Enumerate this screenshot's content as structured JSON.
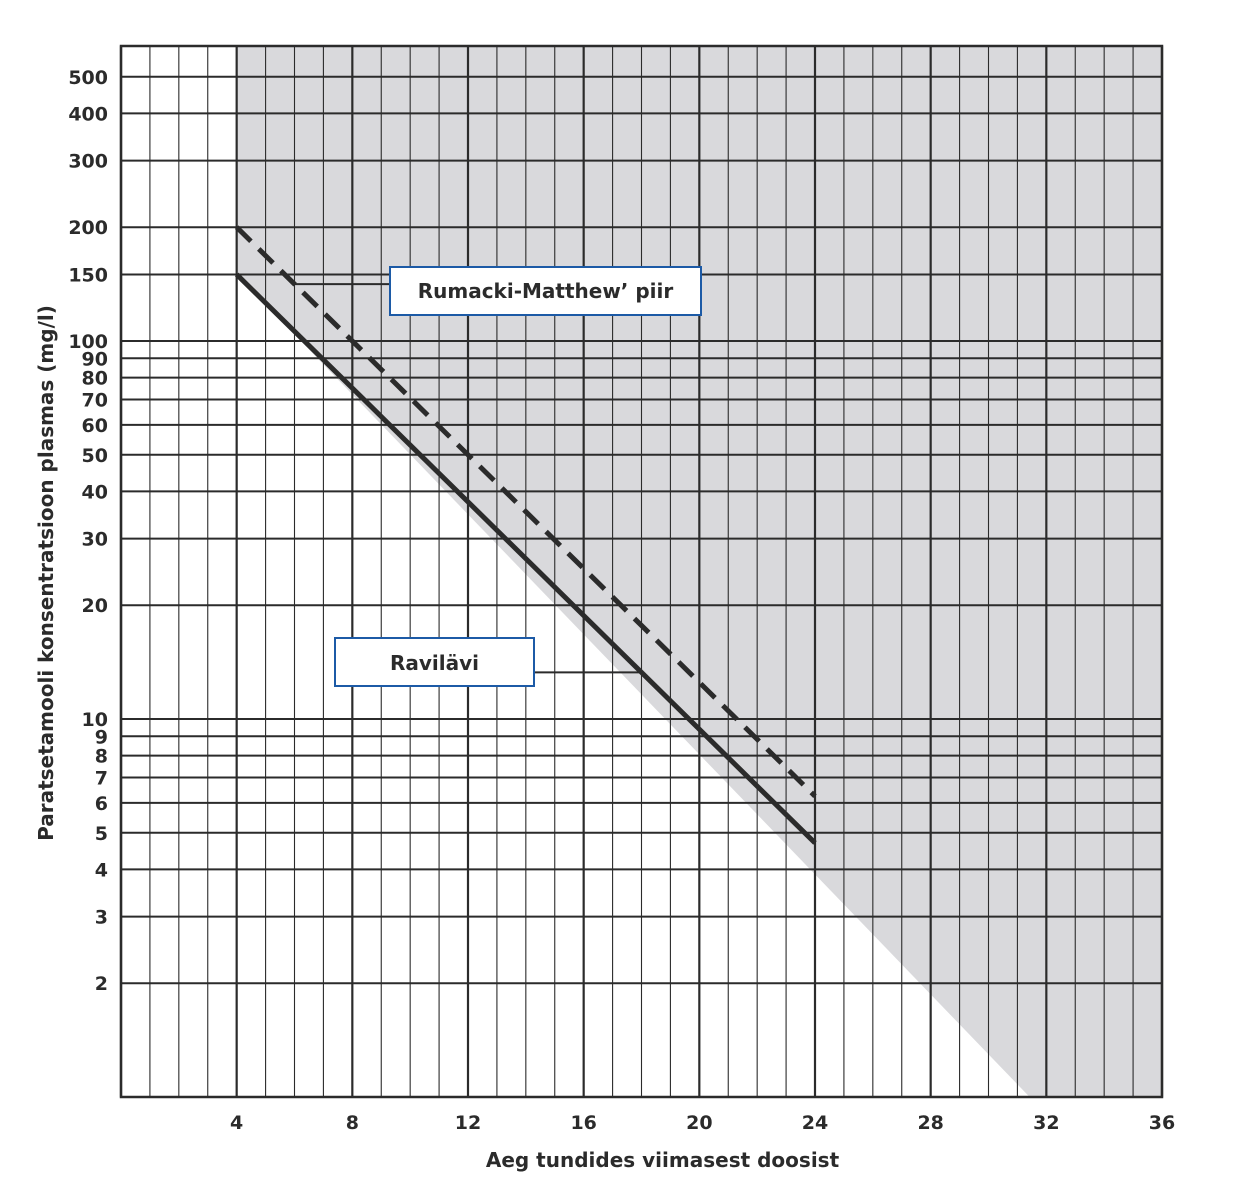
{
  "chart_data": {
    "type": "line",
    "title": "",
    "xlabel": "Aeg tundides viimasest doosist",
    "ylabel": "Paratsetamooli konsentratsioon plasmas (mg/l)",
    "y_scale": "log",
    "xlim": [
      0,
      36
    ],
    "ylim": [
      1.3,
      600
    ],
    "x_ticks": [
      "4",
      "8",
      "12",
      "16",
      "20",
      "24",
      "28",
      "32",
      "36"
    ],
    "y_ticks": [
      "500",
      "400",
      "300",
      "200",
      "150",
      "100",
      "90",
      "80",
      "70",
      "60",
      "50",
      "40",
      "30",
      "20",
      "10",
      "9",
      "8",
      "7",
      "6",
      "5",
      "4",
      "3",
      "2"
    ],
    "grid": true,
    "series": [
      {
        "name": "Rumacki-Matthew’ piir",
        "style": "dashed",
        "x": [
          4,
          24
        ],
        "y": [
          200,
          6.25
        ]
      },
      {
        "name": "Ravilävi",
        "style": "solid",
        "x": [
          4,
          24
        ],
        "y": [
          150,
          4.7
        ]
      }
    ],
    "shaded_region": {
      "description": "treatment zone above line",
      "color": "#d9d9dc"
    },
    "annotations": [
      {
        "text": "Rumacki-Matthew’ piir",
        "points_to_x": 6,
        "series": 0
      },
      {
        "text": "Ravilävi",
        "points_to_x": 18,
        "series": 1
      }
    ],
    "colors": {
      "grid": "#2b2b2b",
      "line": "#2b2b2b",
      "shade": "#d9d9dc",
      "label_border": "#1c5aa6"
    }
  }
}
